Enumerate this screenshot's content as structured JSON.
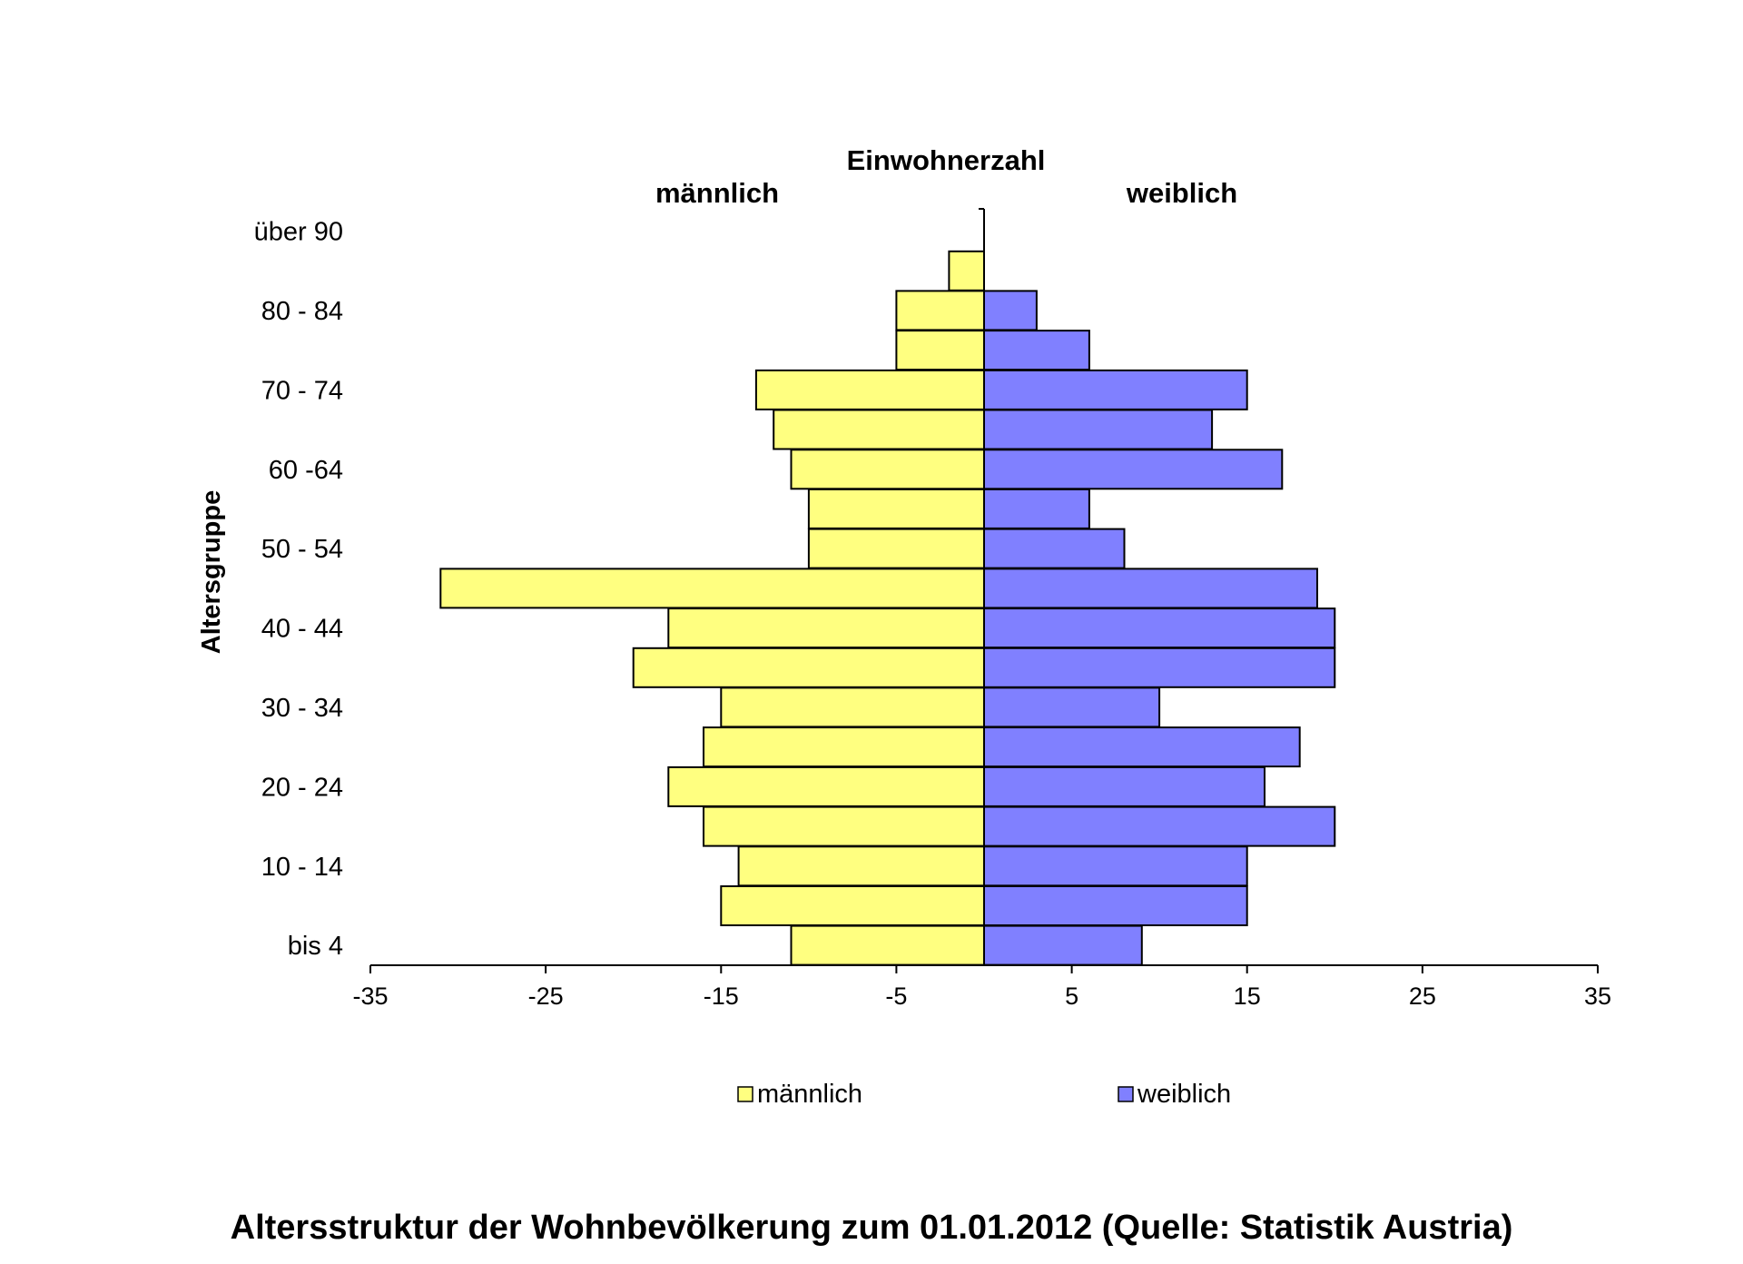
{
  "chart_data": {
    "type": "bar",
    "orientation": "horizontal",
    "title": "Einwohnerzahl",
    "caption": "Altersstruktur der Wohnbevölkerung zum 01.01.2012 (Quelle: Statistik Austria)",
    "side_labels": {
      "left": "männlich",
      "right": "weiblich"
    },
    "ylabel": "Altersgruppe",
    "xlabel": "",
    "xlim": [
      -35,
      35
    ],
    "xticks": [
      "-35",
      "-25",
      "-15",
      "-5",
      "5",
      "15",
      "25",
      "35"
    ],
    "categories": [
      "bis 4",
      "",
      "10 - 14",
      "",
      "20 - 24",
      "",
      "30 - 34",
      "",
      "40 - 44",
      "",
      "50 - 54",
      "",
      "60 -64",
      "",
      "70 - 74",
      "",
      "80 - 84",
      "",
      "über 90"
    ],
    "series": [
      {
        "name": "männlich",
        "color": "#ffff80",
        "values": [
          -11,
          -15,
          -14,
          -16,
          -18,
          -16,
          -15,
          -20,
          -18,
          -31,
          -10,
          -10,
          -11,
          -12,
          -13,
          -5,
          -5,
          -2,
          0
        ]
      },
      {
        "name": "weiblich",
        "color": "#8080ff",
        "values": [
          9,
          15,
          15,
          20,
          16,
          18,
          10,
          20,
          20,
          19,
          8,
          6,
          17,
          13,
          15,
          6,
          3,
          0,
          0
        ]
      }
    ],
    "grid": false,
    "legend_position": "bottom"
  }
}
